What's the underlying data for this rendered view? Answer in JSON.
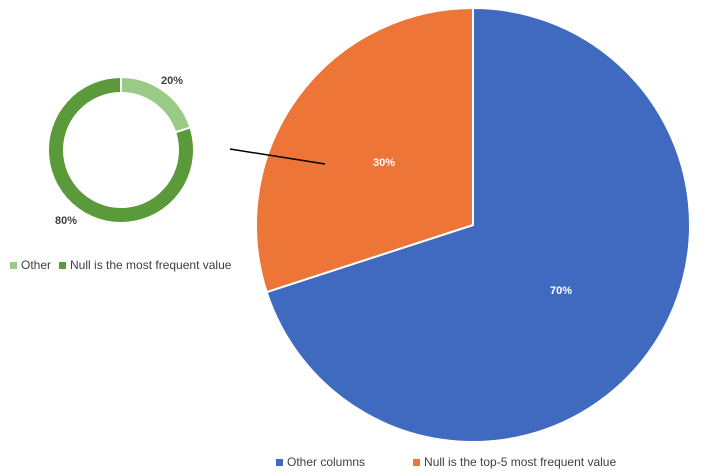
{
  "chart_data": [
    {
      "type": "pie",
      "variant": "donut",
      "slices": [
        {
          "label": "Other",
          "value": 20,
          "data_label": "20%",
          "color": "#9ACB86"
        },
        {
          "label": "Null is the most frequent value",
          "value": 80,
          "data_label": "80%",
          "color": "#5A9A3A"
        }
      ],
      "legend_position": "bottom"
    },
    {
      "type": "pie",
      "slices": [
        {
          "label": "Other columns",
          "value": 70,
          "data_label": "70%",
          "color": "#4069C0"
        },
        {
          "label": "Null is the top-5 most frequent value",
          "value": 30,
          "data_label": "30%",
          "color": "#ED7537"
        }
      ],
      "legend_position": "bottom"
    }
  ],
  "connector_line_color": "#000000"
}
